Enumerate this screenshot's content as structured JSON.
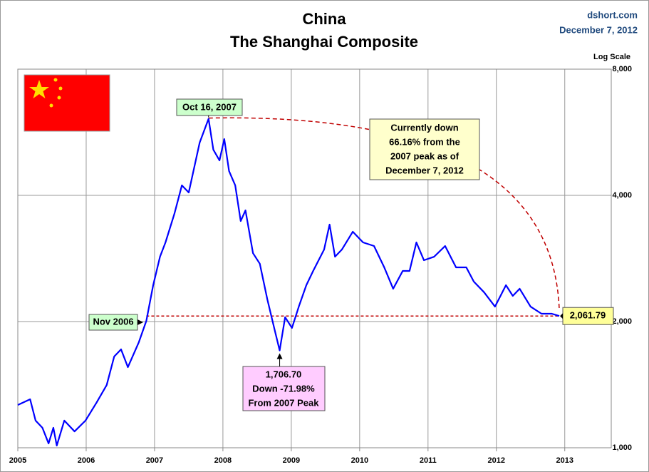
{
  "chart_data": {
    "type": "line",
    "title": "China",
    "subtitle": "The Shanghai Composite",
    "source": "dshort.com",
    "date": "December 7, 2012",
    "scale_label": "Log Scale",
    "log_scale": true,
    "grid": true,
    "xlim": [
      2005,
      2013.68
    ],
    "xticks": [
      2005,
      2006,
      2007,
      2008,
      2009,
      2010,
      2011,
      2012,
      2013
    ],
    "ylim": [
      1000,
      8000
    ],
    "yticks": [
      {
        "value": 1000,
        "label": "1,000"
      },
      {
        "value": 2000,
        "label": "2,000"
      },
      {
        "value": 4000,
        "label": "4,000"
      },
      {
        "value": 8000,
        "label": "8,000"
      }
    ],
    "series": [
      {
        "name": "Shanghai Composite",
        "color": "#0000ff",
        "x": [
          2005.0,
          2005.18,
          2005.26,
          2005.36,
          2005.45,
          2005.52,
          2005.57,
          2005.68,
          2005.83,
          2005.99,
          2006.15,
          2006.3,
          2006.41,
          2006.51,
          2006.61,
          2006.77,
          2006.88,
          2006.98,
          2007.08,
          2007.16,
          2007.29,
          2007.4,
          2007.5,
          2007.66,
          2007.79,
          2007.86,
          2007.95,
          2008.02,
          2008.09,
          2008.18,
          2008.26,
          2008.33,
          2008.44,
          2008.54,
          2008.65,
          2008.75,
          2008.83,
          2008.91,
          2009.01,
          2009.11,
          2009.22,
          2009.32,
          2009.48,
          2009.56,
          2009.64,
          2009.74,
          2009.9,
          2010.05,
          2010.21,
          2010.36,
          2010.49,
          2010.63,
          2010.73,
          2010.83,
          2010.94,
          2011.09,
          2011.25,
          2011.41,
          2011.56,
          2011.67,
          2011.82,
          2011.98,
          2012.14,
          2012.24,
          2012.34,
          2012.5,
          2012.66,
          2012.81,
          2012.92
        ],
        "values": [
          1265,
          1305,
          1161,
          1116,
          1024,
          1116,
          1012,
          1161,
          1094,
          1161,
          1280,
          1411,
          1651,
          1717,
          1557,
          1785,
          2008,
          2442,
          2856,
          3089,
          3613,
          4226,
          4063,
          5345,
          6092,
          5140,
          4846,
          5450,
          4570,
          4226,
          3474,
          3684,
          2912,
          2747,
          2258,
          1931,
          1706.7,
          2048,
          1931,
          2171,
          2442,
          2641,
          2970,
          3407,
          2856,
          2970,
          3276,
          3089,
          3029,
          2693,
          2395,
          2641,
          2641,
          3089,
          2801,
          2856,
          3029,
          2693,
          2693,
          2490,
          2349,
          2171,
          2442,
          2303,
          2395,
          2171,
          2088,
          2088,
          2061.79
        ],
        "value_labels": {
          "36": "1,706.70",
          "68": "2,061.79"
        }
      }
    ],
    "annotations": [
      {
        "lines": [
          "Oct 16, 2007"
        ]
      },
      {
        "lines": [
          "Currently down",
          "66.16% from the",
          "2007 peak as of",
          "December 7, 2012"
        ]
      },
      {
        "lines": [
          "Nov 2006"
        ]
      },
      {
        "lines": [
          "Down -71.98%",
          "From 2007 Peak"
        ]
      }
    ]
  }
}
